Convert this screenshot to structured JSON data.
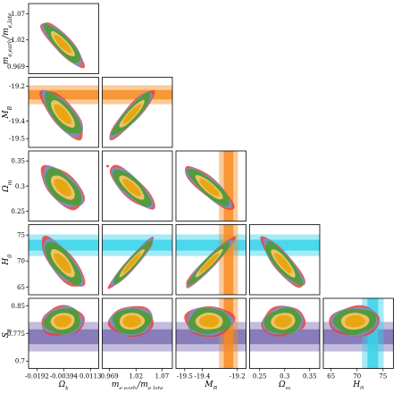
{
  "chart_data": {
    "type": "corner",
    "parameters": [
      {
        "key": "ok",
        "label": "Ω",
        "sub": "k",
        "ticks": [
          "-0.0192",
          "-0.00394",
          "0.0113"
        ],
        "tick_values": [
          -0.0192,
          -0.00394,
          0.0113
        ],
        "range": [
          -0.024,
          0.016
        ]
      },
      {
        "key": "me",
        "label": "m",
        "sub": "e,early",
        "over": "m",
        "osub": "e,late",
        "ticks": [
          "0.969",
          "1.02",
          "1.07"
        ],
        "tick_values": [
          0.969,
          1.02,
          1.07
        ],
        "range": [
          0.955,
          1.09
        ]
      },
      {
        "key": "mb",
        "label": "M",
        "sub": "B",
        "ticks": [
          "-19.5",
          "-19.4",
          "-19.2"
        ],
        "tick_values": [
          -19.5,
          -19.4,
          -19.2
        ],
        "range": [
          -19.55,
          -19.15
        ]
      },
      {
        "key": "om",
        "label": "Ω",
        "sub": "m",
        "ticks": [
          "0.25",
          "0.3",
          "0.35"
        ],
        "tick_values": [
          0.25,
          0.3,
          0.35
        ],
        "range": [
          0.23,
          0.37
        ]
      },
      {
        "key": "h0",
        "label": "H",
        "sub": "0",
        "ticks": [
          "65",
          "70",
          "75"
        ],
        "tick_values": [
          65,
          70,
          75
        ],
        "range": [
          63.5,
          77
        ]
      },
      {
        "key": "s8",
        "label": "S",
        "sub": "8",
        "ticks": [
          "0.7",
          "0.775",
          "0.85"
        ],
        "tick_values": [
          0.7,
          0.775,
          0.85
        ],
        "range": [
          0.68,
          0.87
        ]
      }
    ],
    "priors": {
      "mb": {
        "center": -19.25,
        "sigma": 0.027,
        "color": "#f7891f"
      },
      "h0": {
        "center": 73.04,
        "sigma": 1.04,
        "color": "#34d3ea"
      },
      "s8": {
        "center": 0.766,
        "sigma": 0.02,
        "color": "#7b6bb2"
      }
    },
    "series": [
      {
        "color": "#e53f3f",
        "alpha": 0.85,
        "scale": 1.12
      },
      {
        "color": "#6f97d2",
        "alpha": 0.85,
        "scale": 1.04
      },
      {
        "color": "#4e9c2f",
        "alpha": 0.9,
        "scale": 0.95
      },
      {
        "color": "#f6c56a",
        "alpha": 0.95,
        "scale": 0.62
      },
      {
        "color": "#e8a712",
        "alpha": 1.0,
        "scale": 0.45
      }
    ],
    "marginals": {
      "ok": {
        "mean": -0.0045,
        "sd": 0.0048
      },
      "me": {
        "mean": 1.012,
        "sd": 0.017
      },
      "mb": {
        "mean": -19.36,
        "sd": 0.055
      },
      "om": {
        "mean": 0.297,
        "sd": 0.017
      },
      "h0": {
        "mean": 69.6,
        "sd": 1.9
      },
      "s8": {
        "mean": 0.808,
        "sd": 0.016
      }
    },
    "corr": {
      "me|ok": -0.85,
      "mb|ok": -0.75,
      "mb|me": 0.9,
      "om|ok": -0.6,
      "om|me": -0.8,
      "om|mb": -0.85,
      "h0|ok": -0.75,
      "h0|me": 0.95,
      "h0|mb": 0.95,
      "h0|om": -0.85,
      "s8|ok": 0.1,
      "s8|me": 0.05,
      "s8|mb": 0.0,
      "s8|om": 0.1,
      "s8|h0": 0.05
    }
  }
}
